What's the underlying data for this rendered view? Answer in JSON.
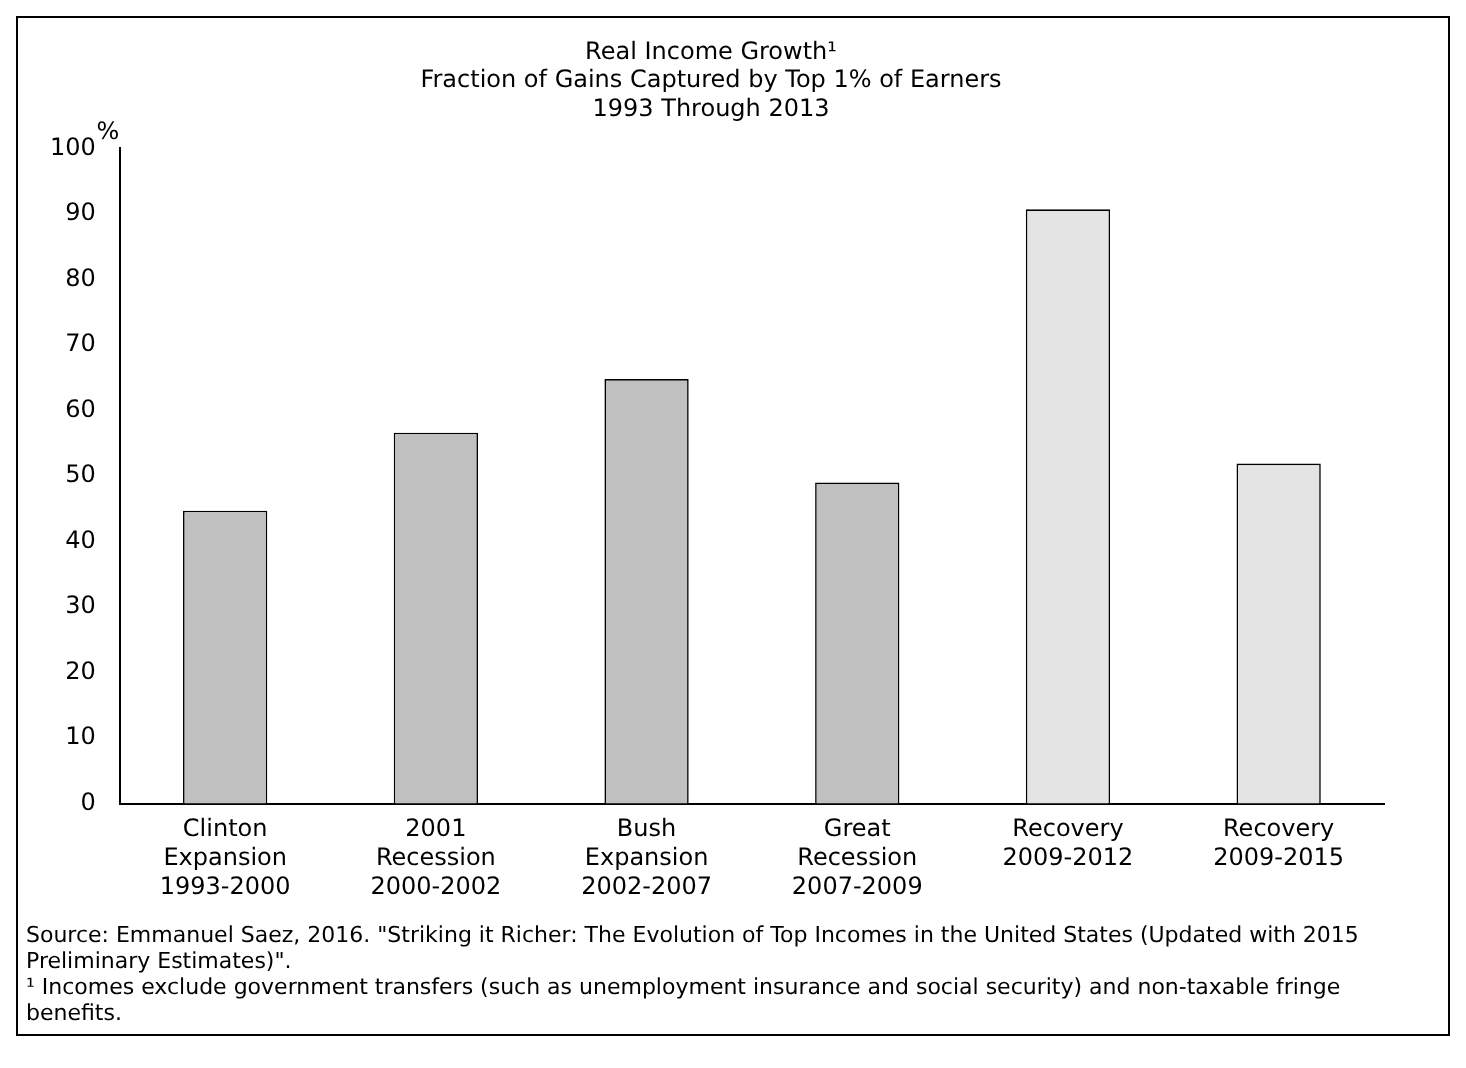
{
  "chart_data": {
    "type": "bar",
    "title": [
      "Real Income Growth¹",
      "Fraction of Gains Captured by Top 1% of Earners",
      "1993 Through 2013"
    ],
    "ylabel": "%",
    "categories": [
      "Clinton\nExpansion\n1993-2000",
      "2001\nRecession\n2000-2002",
      "Bush\nExpansion\n2002-2007",
      "Great\nRecession\n2007-2009",
      "Recovery\n2009-2012",
      "Recovery\n2009-2015"
    ],
    "values": [
      44.7,
      56.6,
      64.8,
      49.0,
      90.7,
      51.9
    ],
    "colors": [
      "#c0c0c0",
      "#c0c0c0",
      "#c0c0c0",
      "#c0c0c0",
      "#e4e4e4",
      "#e4e4e4"
    ],
    "ylim": [
      0,
      100
    ],
    "yticks": [
      0,
      10,
      20,
      30,
      40,
      50,
      60,
      70,
      80,
      90,
      100
    ],
    "grid": false,
    "legend": false,
    "annotations": [
      "Source: Emmanuel Saez, 2016. \"Striking it Richer: The Evolution of Top Incomes in the United States (Updated with 2015 Preliminary Estimates)\".",
      "¹ Incomes exclude government transfers (such as unemployment insurance and social security) and non-taxable fringe benefits."
    ]
  }
}
